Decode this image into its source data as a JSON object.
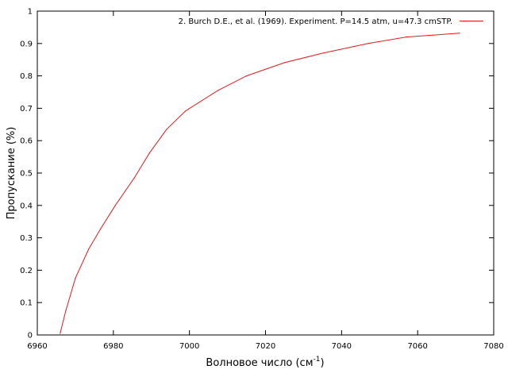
{
  "chart_data": {
    "type": "line",
    "xlabel": "Волновое число (см",
    "xlabel_sup": "-1",
    "xlabel_end": ")",
    "ylabel": "Пропускание (%)",
    "xlim": [
      6960,
      7080
    ],
    "ylim": [
      0,
      1
    ],
    "xticks": [
      6960,
      6980,
      7000,
      7020,
      7040,
      7060,
      7080
    ],
    "yticks": [
      0,
      0.1,
      0.2,
      0.3,
      0.4,
      0.5,
      0.6,
      0.7,
      0.8,
      0.9,
      1
    ],
    "xtick_labels": [
      "6960",
      "6980",
      "7000",
      "7020",
      "7040",
      "7060",
      "7080"
    ],
    "ytick_labels": [
      "0",
      "0.1",
      "0.2",
      "0.3",
      "0.4",
      "0.5",
      "0.6",
      "0.7",
      "0.8",
      "0.9",
      "1"
    ],
    "legend_position": "top-right",
    "grid": false,
    "series": [
      {
        "name": "2. Burch D.E., et al. (1969). Experiment.  P=14.5 atm, u=47.3 cmSTP.",
        "color": "#e41a1c",
        "x": [
          6966,
          6967.5,
          6970,
          6973.5,
          6976.5,
          6980.5,
          6985.5,
          6989.5,
          6994,
          6999,
          7007.5,
          7015,
          7025,
          7035,
          7047,
          7057,
          7064,
          7071
        ],
        "y": [
          0.005,
          0.075,
          0.175,
          0.265,
          0.325,
          0.4,
          0.485,
          0.562,
          0.635,
          0.692,
          0.755,
          0.8,
          0.841,
          0.87,
          0.9,
          0.92,
          0.926,
          0.932
        ]
      }
    ]
  }
}
